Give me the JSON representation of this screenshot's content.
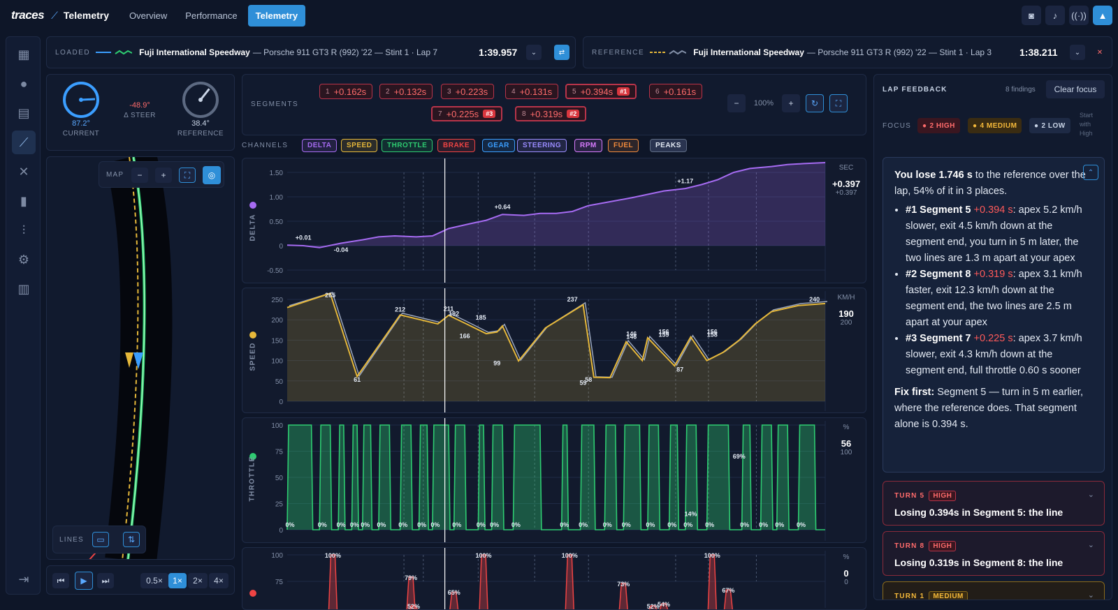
{
  "app": {
    "logo": "traces",
    "page_label": "Telemetry"
  },
  "nav": {
    "tabs": [
      {
        "label": "Overview"
      },
      {
        "label": "Performance"
      },
      {
        "label": "Telemetry"
      }
    ]
  },
  "top_icons": [
    "camera-icon",
    "bell-icon",
    "broadcast-icon",
    "graduation-cap-icon"
  ],
  "sidebar": {
    "items": [
      "dashboard-icon",
      "circle-icon",
      "sessions-icon",
      "telemetry-icon",
      "setup-icon",
      "stats-icon",
      "sliders-icon",
      "settings-icon",
      "guide-icon",
      "logout-icon"
    ]
  },
  "loaded": {
    "label": "LOADED",
    "track": "Fuji International Speedway",
    "rest": "— Porsche 911 GT3 R (992) '22 — Stint 1 · Lap 7",
    "time": "1:39.957"
  },
  "reference": {
    "label": "REFERENCE",
    "track": "Fuji International Speedway",
    "rest": "— Porsche 911 GT3 R (992) '22 — Stint 1 · Lap 3",
    "time": "1:38.211"
  },
  "steer": {
    "current_value": "87.2°",
    "current_label": "CURRENT",
    "delta_value": "-48.9°",
    "delta_label": "Δ STEER",
    "ref_value": "38.4°",
    "ref_label": "REFERENCE",
    "current_deg": 87.2,
    "ref_deg": 38.4
  },
  "map": {
    "label": "MAP",
    "lines_label": "LINES"
  },
  "playback": {
    "speeds": [
      "0.5×",
      "1×",
      "2×",
      "4×"
    ],
    "active": "1×"
  },
  "segments": {
    "label": "SEGMENTS",
    "zoom": "100%",
    "items": [
      {
        "n": "1",
        "delta": "+0.162s",
        "rank": ""
      },
      {
        "n": "2",
        "delta": "+0.132s",
        "rank": ""
      },
      {
        "n": "3",
        "delta": "+0.223s",
        "rank": ""
      },
      {
        "n": "4",
        "delta": "+0.131s",
        "rank": ""
      },
      {
        "n": "5",
        "delta": "+0.394s",
        "rank": "#1"
      },
      {
        "n": "6",
        "delta": "+0.161s",
        "rank": ""
      },
      {
        "n": "7",
        "delta": "+0.225s",
        "rank": "#3"
      },
      {
        "n": "8",
        "delta": "+0.319s",
        "rank": "#2"
      }
    ]
  },
  "channels": {
    "label": "CHANNELS",
    "items": [
      {
        "label": "DELTA",
        "color": "#a66bf2"
      },
      {
        "label": "SPEED",
        "color": "#e6b83a"
      },
      {
        "label": "THROTTLE",
        "color": "#2ecc71"
      },
      {
        "label": "BRAKE",
        "color": "#ef4444"
      },
      {
        "label": "GEAR",
        "color": "#3b9eff"
      },
      {
        "label": "STEERING",
        "color": "#9a8cff"
      },
      {
        "label": "RPM",
        "color": "#d97bff"
      },
      {
        "label": "FUEL",
        "color": "#f08a3c"
      }
    ],
    "peaks": "PEAKS"
  },
  "charts": {
    "delta": {
      "axis": "DELTA",
      "unit": "SEC",
      "current": "+0.397",
      "ref": "+0.397",
      "ticks": [
        "1.50",
        "1.00",
        "0.50",
        "0",
        "-0.50"
      ],
      "labels": [
        "+0.01",
        "-0.04",
        "+0.64",
        "+1.17"
      ],
      "color": "#a66bf2"
    },
    "speed": {
      "axis": "SPEED",
      "unit": "KM/H",
      "current": "190",
      "ref": "200",
      "ticks": [
        "250",
        "200",
        "150",
        "100",
        "50",
        "0"
      ],
      "labels": [
        "265",
        "61",
        "212",
        "211",
        "192",
        "166",
        "185",
        "99",
        "237",
        "59",
        "58",
        "146",
        "146",
        "156",
        "159",
        "87",
        "156",
        "158",
        "240"
      ],
      "color": "#e6b83a"
    },
    "throttle": {
      "axis": "THROTTLE",
      "unit": "%",
      "current": "56",
      "ref": "100",
      "ticks": [
        "100",
        "75",
        "50",
        "25",
        "0"
      ],
      "labels": [
        "69%",
        "14%",
        "0%"
      ],
      "color": "#2ecc71"
    },
    "brake": {
      "unit": "%",
      "current": "0",
      "ref": "0",
      "ticks": [
        "100",
        "75"
      ],
      "labels": [
        "100%",
        "79%",
        "52%",
        "65%",
        "100%",
        "100%",
        "73%",
        "52%",
        "54%",
        "100%",
        "67%"
      ],
      "color": "#ef4444"
    }
  },
  "chart_data": [
    {
      "type": "area",
      "title": "",
      "ylabel": "DELTA",
      "ylim": [
        -0.5,
        1.7
      ],
      "x": [
        0,
        3,
        6,
        10,
        14,
        17,
        20,
        24,
        27,
        30,
        34,
        37,
        40,
        44,
        47,
        50,
        53,
        56,
        60,
        64,
        67,
        70,
        74,
        77,
        80,
        83,
        86,
        90,
        93,
        96,
        100
      ],
      "values": [
        0.01,
        0.0,
        -0.04,
        0.05,
        0.12,
        0.18,
        0.2,
        0.18,
        0.2,
        0.35,
        0.45,
        0.52,
        0.64,
        0.62,
        0.66,
        0.66,
        0.7,
        0.82,
        0.9,
        0.98,
        1.05,
        1.12,
        1.17,
        1.25,
        1.35,
        1.5,
        1.58,
        1.62,
        1.66,
        1.68,
        1.7
      ]
    },
    {
      "type": "line",
      "title": "",
      "ylabel": "SPEED",
      "ylim": [
        0,
        265
      ],
      "x": [
        0,
        8,
        13,
        21,
        28,
        30,
        33,
        37,
        39,
        40,
        43,
        48,
        55,
        57,
        60,
        63,
        66,
        67,
        72,
        75,
        78,
        81,
        84,
        87,
        90,
        95,
        100
      ],
      "values": [
        230,
        265,
        61,
        212,
        190,
        211,
        192,
        166,
        170,
        185,
        99,
        180,
        237,
        59,
        58,
        146,
        100,
        156,
        87,
        158,
        100,
        120,
        150,
        190,
        220,
        235,
        240
      ]
    },
    {
      "type": "line",
      "title": "",
      "ylabel": "THROTTLE",
      "ylim": [
        0,
        100
      ],
      "labels": [
        "69%",
        "14%",
        "0%"
      ]
    },
    {
      "type": "line",
      "title": "",
      "ylabel": "BRAKE",
      "ylim": [
        0,
        100
      ],
      "peaks": [
        100,
        79,
        52,
        65,
        100,
        100,
        73,
        52,
        54,
        100,
        67
      ]
    }
  ],
  "feedback": {
    "title": "LAP FEEDBACK",
    "findings": "8 findings",
    "clear": "Clear focus",
    "focus_label": "FOCUS",
    "high": "2 HIGH",
    "medium": "4 MEDIUM",
    "low": "2 LOW",
    "hint": "Start with High",
    "summary_intro_bold": "You lose 1.746 s",
    "summary_intro_rest": " to the reference over the lap, 54% of it in 3 places.",
    "items": [
      {
        "title": "#1 Segment 5",
        "delta": "+0.394 s",
        "text": ": apex 5.2 km/h slower, exit 4.5 km/h down at the segment end, you turn in 5 m later, the two lines are 1.3 m apart at your apex"
      },
      {
        "title": "#2 Segment 8",
        "delta": "+0.319 s",
        "text": ": apex 3.1 km/h faster, exit 12.3 km/h down at the segment end, the two lines are 2.5 m apart at your apex"
      },
      {
        "title": "#3 Segment 7",
        "delta": "+0.225 s",
        "text": ": apex 3.7 km/h slower, exit 4.3 km/h down at the segment end, full throttle 0.60 s sooner"
      }
    ],
    "fix_bold": "Fix first:",
    "fix_text": " Segment 5 — turn in 5 m earlier, where the reference does. That segment alone is 0.394 s.",
    "cards": [
      {
        "turn": "TURN 5",
        "sev": "HIGH",
        "title": "Losing 0.394s in Segment 5: the line"
      },
      {
        "turn": "TURN 8",
        "sev": "HIGH",
        "title": "Losing 0.319s in Segment 8: the line"
      },
      {
        "turn": "TURN 1",
        "sev": "MEDIUM",
        "title": ""
      }
    ]
  }
}
